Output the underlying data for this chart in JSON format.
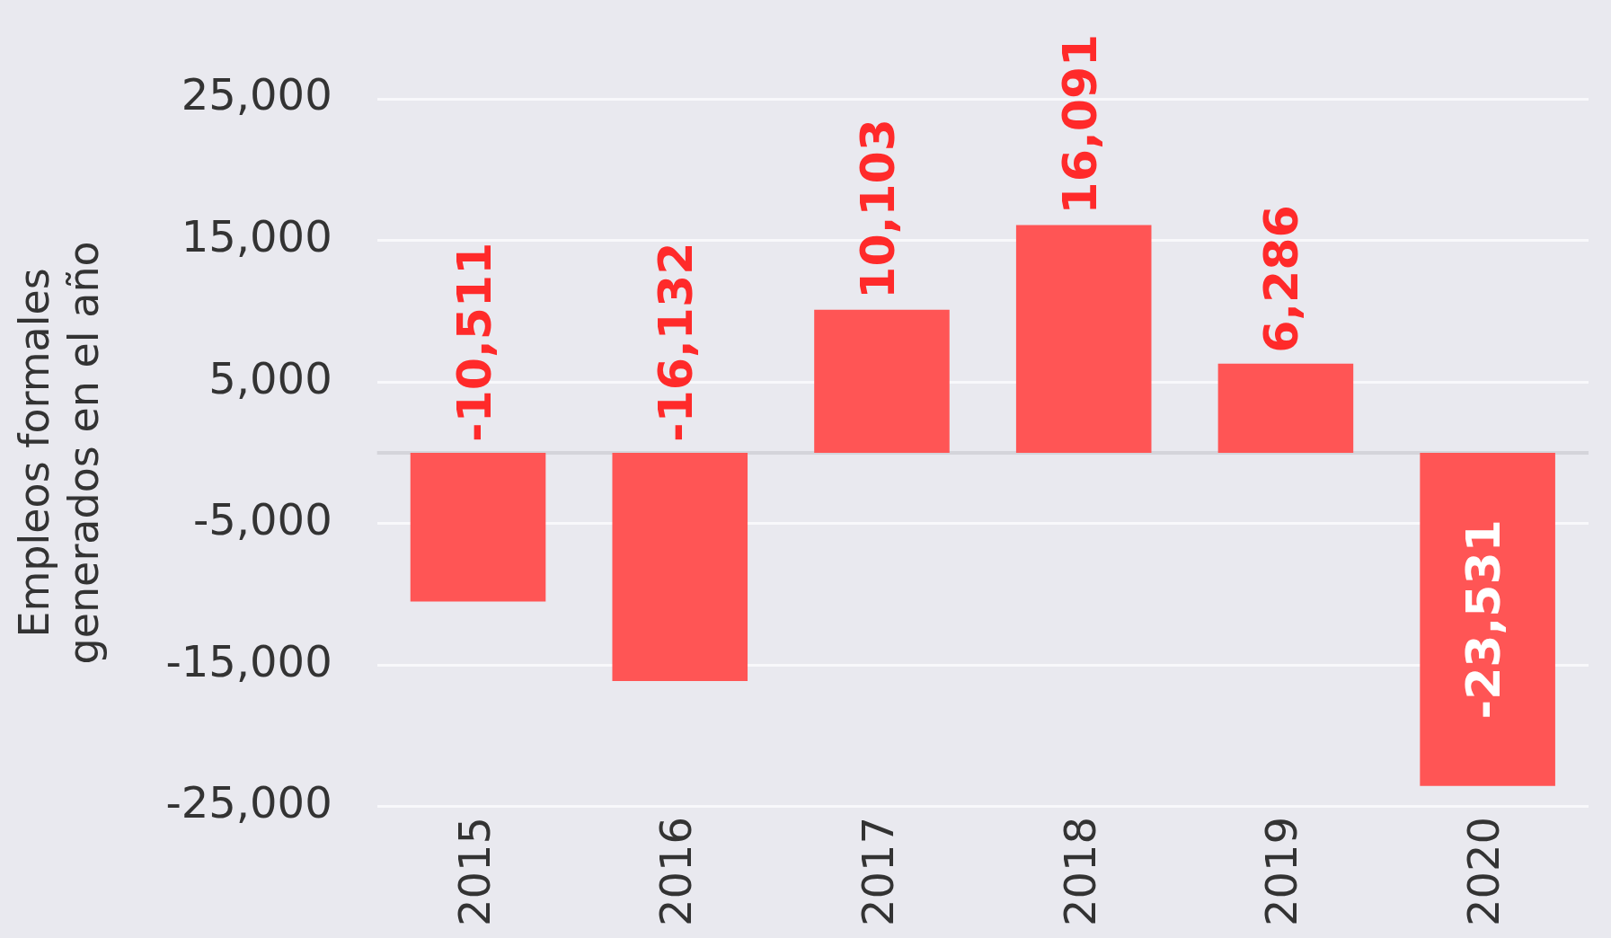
{
  "chart_data": {
    "type": "bar",
    "ylabel": "Empleos formales\ngenerados en el año",
    "categories": [
      "2015",
      "2016",
      "2017",
      "2018",
      "2019",
      "2020"
    ],
    "values": [
      -10511,
      -16132,
      10103,
      16091,
      6286,
      -23531
    ],
    "value_labels": [
      "-10,511",
      "-16,132",
      "10,103",
      "16,091",
      "6,286",
      "-23,531"
    ],
    "color": "#ff5555",
    "ylim": [
      -25000,
      25000
    ],
    "yticks": [
      {
        "value": -25000,
        "label": "-25,000"
      },
      {
        "value": -15000,
        "label": "-15,000"
      },
      {
        "value": -5000,
        "label": "-5,000"
      },
      {
        "value": 5000,
        "label": "5,000"
      },
      {
        "value": 15000,
        "label": "15,000"
      },
      {
        "value": 25000,
        "label": "25,000"
      }
    ],
    "grid": "y",
    "legend": false
  }
}
